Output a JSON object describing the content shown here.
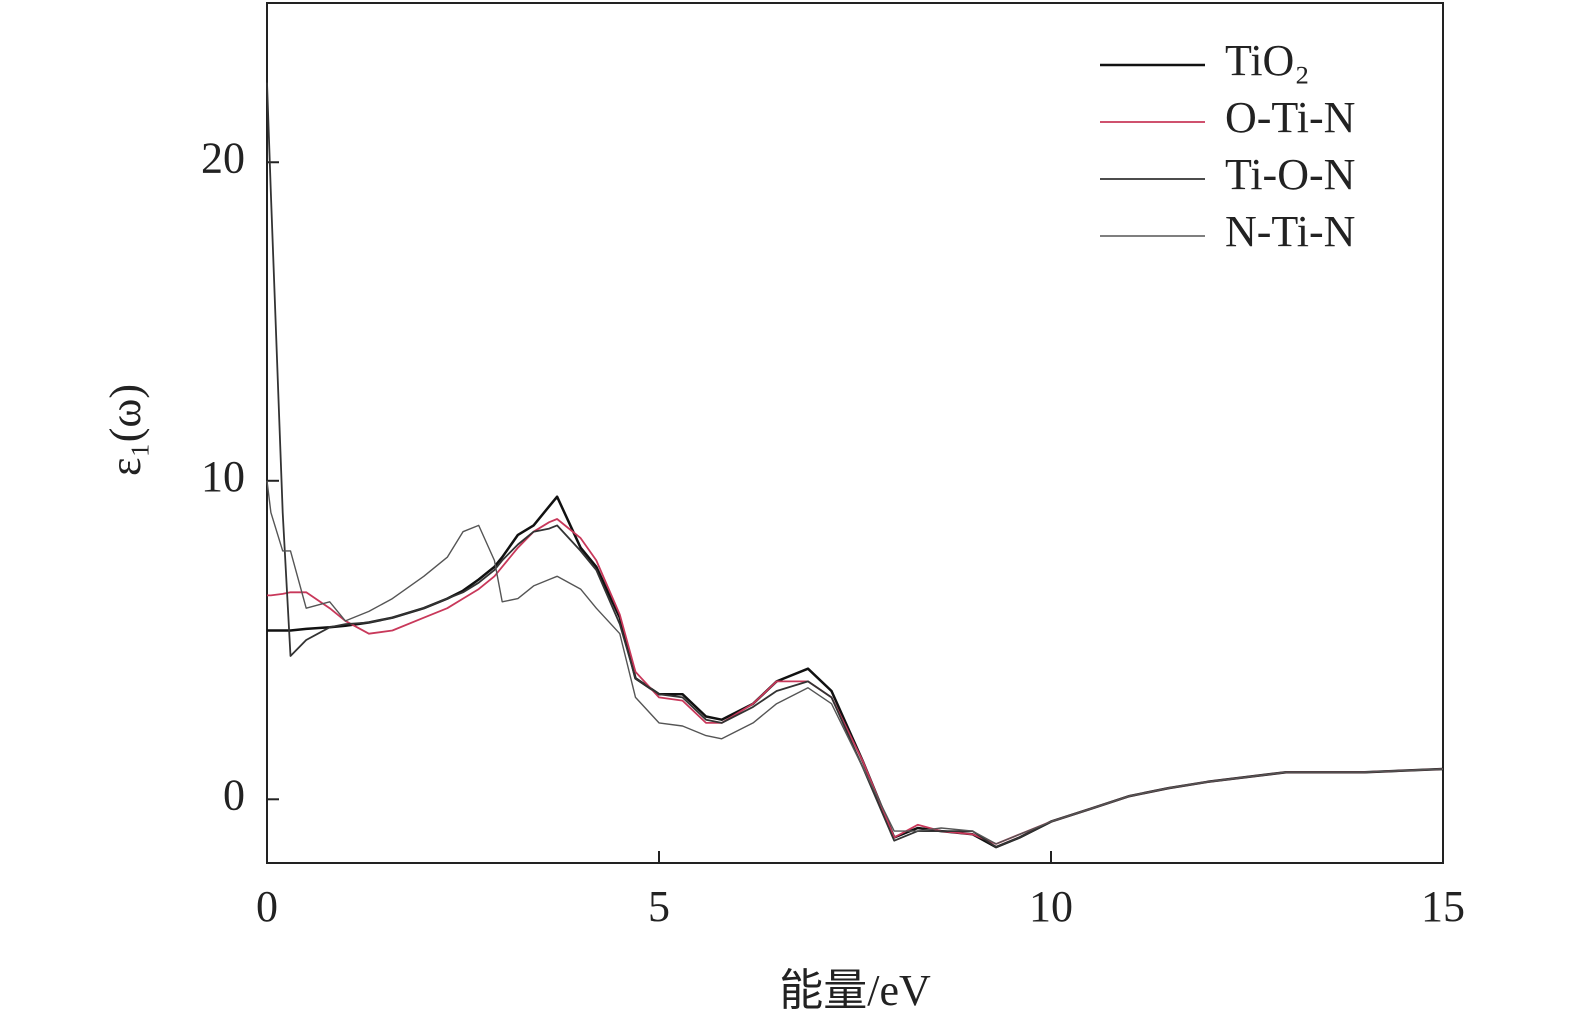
{
  "chart_data": {
    "type": "line",
    "x_label": "能量/eV",
    "y_label": "ε₁(ω)",
    "x": [
      0,
      0.05,
      0.2,
      0.3,
      0.5,
      0.8,
      1,
      1.3,
      1.6,
      2,
      2.3,
      2.5,
      2.7,
      2.9,
      3,
      3.2,
      3.4,
      3.6,
      3.7,
      4,
      4.2,
      4.5,
      4.7,
      5,
      5.3,
      5.6,
      5.8,
      6.2,
      6.5,
      6.9,
      7.2,
      7.6,
      8,
      8.3,
      8.6,
      9,
      9.3,
      9.6,
      10,
      10.5,
      11,
      11.5,
      12,
      13,
      14,
      15
    ],
    "series": [
      {
        "name": "TiO₂",
        "color": "#111111",
        "values": [
          5.3,
          5.3,
          5.3,
          5.3,
          5.35,
          5.4,
          5.45,
          5.55,
          5.7,
          6.0,
          6.3,
          6.55,
          6.9,
          7.3,
          7.6,
          8.3,
          8.6,
          9.2,
          9.5,
          7.9,
          7.3,
          5.7,
          3.8,
          3.3,
          3.3,
          2.6,
          2.5,
          3.0,
          3.7,
          4.1,
          3.4,
          1.2,
          -1.2,
          -0.9,
          -1.0,
          -1.1,
          -1.5,
          -1.2,
          -0.7,
          -0.3,
          0.1,
          0.35,
          0.55,
          0.85,
          0.85,
          0.95
        ]
      },
      {
        "name": "O-Ti-N",
        "color": "#c8385a",
        "values": [
          6.4,
          6.4,
          6.45,
          6.5,
          6.5,
          6.0,
          5.6,
          5.2,
          5.3,
          5.7,
          6.0,
          6.3,
          6.6,
          7.0,
          7.3,
          7.9,
          8.4,
          8.7,
          8.8,
          8.2,
          7.5,
          5.8,
          4.0,
          3.2,
          3.1,
          2.4,
          2.4,
          3.0,
          3.7,
          3.7,
          3.2,
          1.2,
          -1.2,
          -0.8,
          -1.0,
          -1.1,
          -1.4,
          -1.1,
          -0.7,
          -0.3,
          0.1,
          0.35,
          0.55,
          0.85,
          0.85,
          0.95
        ]
      },
      {
        "name": "Ti-O-N",
        "color": "#333333",
        "values": [
          22.5,
          19,
          9,
          4.5,
          5.0,
          5.4,
          5.5,
          5.55,
          5.7,
          6.0,
          6.3,
          6.5,
          6.8,
          7.2,
          7.5,
          8.0,
          8.4,
          8.5,
          8.6,
          7.8,
          7.2,
          5.5,
          3.8,
          3.3,
          3.2,
          2.5,
          2.4,
          2.9,
          3.4,
          3.7,
          3.2,
          1.0,
          -1.3,
          -1.0,
          -1.0,
          -1.0,
          -1.5,
          -1.2,
          -0.7,
          -0.3,
          0.1,
          0.35,
          0.55,
          0.85,
          0.85,
          0.95
        ]
      },
      {
        "name": "N-Ti-N",
        "color": "#555555",
        "values": [
          10,
          9,
          7.8,
          7.8,
          6.0,
          6.2,
          5.6,
          5.9,
          6.3,
          7.0,
          7.6,
          8.4,
          8.6,
          7.5,
          6.2,
          6.3,
          6.7,
          6.9,
          7.0,
          6.6,
          6.0,
          5.2,
          3.2,
          2.4,
          2.3,
          2.0,
          1.9,
          2.4,
          3.0,
          3.5,
          3.0,
          1.0,
          -1.0,
          -1.0,
          -0.9,
          -1.0,
          -1.4,
          -1.1,
          -0.7,
          -0.3,
          0.1,
          0.35,
          0.55,
          0.85,
          0.85,
          0.95
        ]
      }
    ],
    "xlim": [
      0,
      15
    ],
    "ylim": [
      -2,
      25
    ],
    "xticks": [
      0,
      5,
      10,
      15
    ],
    "yticks": [
      0,
      10,
      20
    ],
    "legend": "upper right"
  }
}
